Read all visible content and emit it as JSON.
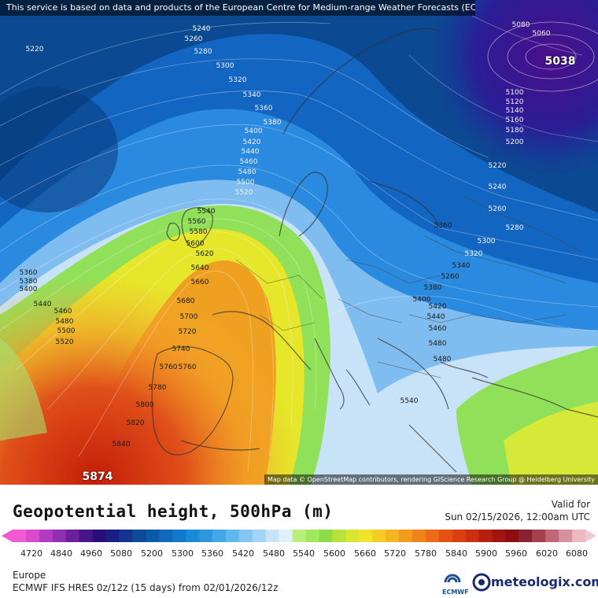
{
  "header": {
    "attribution": "This service is based on data and products of the European Centre for Medium-range Weather Forecasts (ECMWF)"
  },
  "map": {
    "attribution": "Map data © OpenStreetMap contributors, rendering GIScience Research Group @ Heidelberg University",
    "contour_labels": [
      "5240",
      "5260",
      "5280",
      "5300",
      "5320",
      "5340",
      "5360",
      "5380",
      "5400",
      "5420",
      "5440",
      "5460",
      "5480",
      "5500",
      "5520",
      "5220",
      "5540",
      "5560",
      "5580",
      "5600",
      "5620",
      "5640",
      "5660",
      "5680",
      "5700",
      "5720",
      "5740",
      "5760",
      "5760",
      "5780",
      "5800",
      "5820",
      "5840",
      "5360",
      "5380",
      "5400",
      "5440",
      "5460",
      "5480",
      "5500",
      "5520",
      "5080",
      "5060",
      "5100",
      "5120",
      "5140",
      "5160",
      "5180",
      "5200",
      "5220",
      "5240",
      "5260",
      "5280",
      "5300",
      "5320",
      "5340",
      "5260",
      "5360",
      "5380",
      "5400",
      "5420",
      "5440",
      "5460",
      "5480",
      "5480",
      "5540"
    ],
    "extremes": [
      "5038",
      "5874"
    ],
    "colors": {
      "low": "#4b0f8a",
      "mid_blue": "#1e78d8",
      "light_blue": "#b8d8f4",
      "green": "#8fe060",
      "yellow": "#f2e020",
      "orange": "#f29020",
      "red": "#d43a10"
    }
  },
  "legend": {
    "title": "Geopotential height, 500hPa (m)",
    "valid_label": "Valid for",
    "valid_time": "Sun 02/15/2026, 12:00am UTC",
    "ticks": [
      "4720",
      "4840",
      "4960",
      "5080",
      "5200",
      "5300",
      "5360",
      "5420",
      "5480",
      "5540",
      "5600",
      "5660",
      "5720",
      "5780",
      "5840",
      "5900",
      "5960",
      "6020",
      "6080"
    ],
    "region": "Europe",
    "model_run": "ECMWF IFS HRES 0z/12z (15 days) from 02/01/2026/12z"
  },
  "branding": {
    "ecmwf": "ECMWF",
    "meteologix": "meteologix.com"
  }
}
